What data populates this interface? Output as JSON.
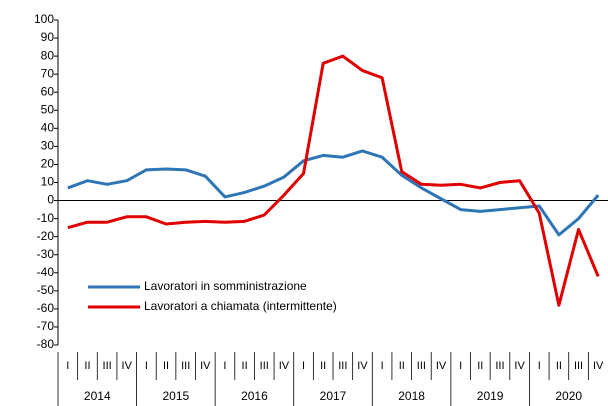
{
  "chart_data": {
    "type": "line",
    "categories": [
      "I",
      "II",
      "III",
      "IV",
      "I",
      "II",
      "III",
      "IV",
      "I",
      "II",
      "III",
      "IV",
      "I",
      "II",
      "III",
      "IV",
      "I",
      "II",
      "III",
      "IV",
      "I",
      "II",
      "III",
      "IV",
      "I",
      "II",
      "III",
      "IV"
    ],
    "groups": [
      "2014",
      "2015",
      "2016",
      "2017",
      "2018",
      "2019",
      "2020"
    ],
    "series": [
      {
        "name": "Lavoratori in somministrazione",
        "color": "#2e75b6",
        "values": [
          7,
          11,
          9,
          11,
          17,
          17.5,
          17,
          13.5,
          2,
          4.5,
          8,
          13,
          22,
          25,
          24,
          27.5,
          24,
          14,
          7,
          1,
          -5,
          -6,
          -5,
          -4,
          -3,
          -19,
          -10,
          3
        ]
      },
      {
        "name": "Lavoratori a chiamata (intermittente)",
        "color": "#e00000",
        "values": [
          -15,
          -12,
          -12,
          -9,
          -9,
          -13,
          -12,
          -11.5,
          -12,
          -11.5,
          -8,
          3,
          15,
          76,
          80,
          72,
          68,
          16,
          9,
          8.5,
          9,
          7,
          10,
          11,
          -7,
          -58,
          -16,
          -42
        ]
      }
    ],
    "ylim": [
      -80,
      100
    ],
    "yticks": [
      -80,
      -70,
      -60,
      -50,
      -40,
      -30,
      -20,
      -10,
      0,
      10,
      20,
      30,
      40,
      50,
      60,
      70,
      80,
      90,
      100
    ],
    "grid": false,
    "legend": "lower left"
  }
}
